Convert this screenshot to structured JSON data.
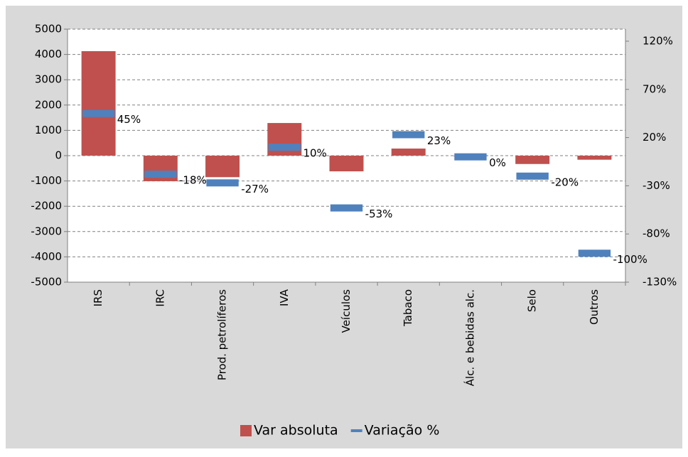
{
  "chart_data": {
    "type": "bar",
    "categories": [
      "IRS",
      "IRC",
      "Prod. petrolíferos",
      "IVA",
      "Veículos",
      "Tabaco",
      "Álc. e bebidas alc.",
      "Selo",
      "Outros"
    ],
    "series": [
      {
        "name": "Var absoluta",
        "color": "#c0504d",
        "type": "bar",
        "values": [
          4130,
          -1010,
          -850,
          1290,
          -620,
          280,
          -20,
          -330,
          -160
        ]
      },
      {
        "name": "Variação %",
        "color": "#4f81bd",
        "type": "marker",
        "axis": "y2",
        "values": [
          45,
          -18,
          -27,
          10,
          -53,
          23,
          0,
          -20,
          -100
        ],
        "value_labels": [
          "45%",
          "-18%",
          "-27%",
          "10%",
          "-53%",
          "23%",
          "0%",
          "-20%",
          "-100%"
        ]
      }
    ],
    "ylim": [
      -5000,
      5000
    ],
    "yticks": [
      -5000,
      -4000,
      -3000,
      -2000,
      -1000,
      0,
      1000,
      2000,
      3000,
      4000,
      5000
    ],
    "y2lim": [
      -130,
      132.5
    ],
    "y2ticks": [
      {
        "value": -130,
        "label": "-130%"
      },
      {
        "value": -80,
        "label": "-80%"
      },
      {
        "value": -30,
        "label": "-30%"
      },
      {
        "value": 20,
        "label": "20%"
      },
      {
        "value": 70,
        "label": "70%"
      },
      {
        "value": 120,
        "label": "120%"
      }
    ],
    "grid": true,
    "legend": "bottom"
  }
}
